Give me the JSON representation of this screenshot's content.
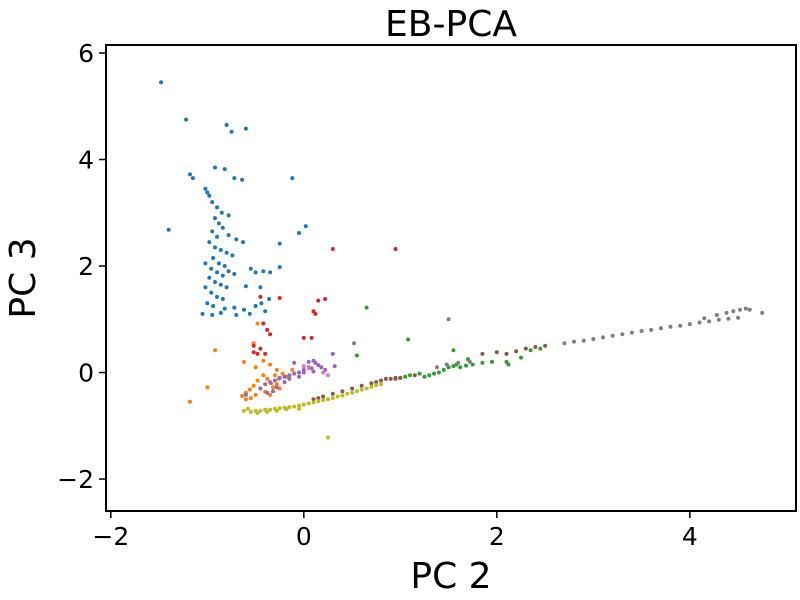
{
  "chart_data": {
    "type": "scatter",
    "title": "EB-PCA",
    "xlabel": "PC 2",
    "ylabel": "PC 3",
    "xlim": [
      -2.05,
      5.1
    ],
    "ylim": [
      -2.6,
      6.15
    ],
    "xticks": [
      -2,
      0,
      2,
      4
    ],
    "xtick_labels": [
      "−2",
      "0",
      "2",
      "4"
    ],
    "yticks": [
      -2,
      0,
      2,
      4,
      6
    ],
    "ytick_labels": [
      "−2",
      "0",
      "2",
      "4",
      "6"
    ],
    "grid": false,
    "legend": "none",
    "series": [
      {
        "color": "#1f77b4",
        "points": [
          [
            -1.48,
            5.45
          ],
          [
            -1.22,
            4.75
          ],
          [
            -0.8,
            4.65
          ],
          [
            -0.6,
            4.58
          ],
          [
            -0.75,
            4.52
          ],
          [
            -1.18,
            3.72
          ],
          [
            -1.15,
            3.65
          ],
          [
            -1.02,
            3.45
          ],
          [
            -0.92,
            3.85
          ],
          [
            -0.82,
            3.82
          ],
          [
            -0.72,
            3.65
          ],
          [
            -0.64,
            3.62
          ],
          [
            -0.12,
            3.65
          ],
          [
            -1.0,
            3.38
          ],
          [
            -0.98,
            3.32
          ],
          [
            -1.4,
            2.68
          ],
          [
            -0.95,
            3.2
          ],
          [
            -0.9,
            3.1
          ],
          [
            -0.85,
            3.0
          ],
          [
            -0.78,
            2.95
          ],
          [
            -0.92,
            2.9
          ],
          [
            -0.88,
            2.8
          ],
          [
            -0.84,
            2.72
          ],
          [
            -0.95,
            2.65
          ],
          [
            -0.9,
            2.55
          ],
          [
            -0.78,
            2.58
          ],
          [
            -0.7,
            2.5
          ],
          [
            -0.63,
            2.45
          ],
          [
            0.02,
            2.75
          ],
          [
            -0.05,
            2.62
          ],
          [
            -0.98,
            2.45
          ],
          [
            -0.92,
            2.35
          ],
          [
            -0.86,
            2.3
          ],
          [
            -0.8,
            2.25
          ],
          [
            -0.74,
            2.2
          ],
          [
            -0.94,
            2.15
          ],
          [
            -0.88,
            2.05
          ],
          [
            -0.82,
            2.0
          ],
          [
            -1.02,
            2.05
          ],
          [
            -0.96,
            1.95
          ],
          [
            -0.9,
            1.88
          ],
          [
            -0.84,
            1.82
          ],
          [
            -0.78,
            1.9
          ],
          [
            -0.72,
            1.85
          ],
          [
            -0.55,
            1.95
          ],
          [
            -0.5,
            1.88
          ],
          [
            -0.42,
            1.9
          ],
          [
            -0.35,
            1.88
          ],
          [
            -0.25,
            1.98
          ],
          [
            -0.98,
            1.78
          ],
          [
            -0.92,
            1.7
          ],
          [
            -0.86,
            1.65
          ],
          [
            -0.8,
            1.6
          ],
          [
            -1.02,
            1.6
          ],
          [
            -0.96,
            1.5
          ],
          [
            -0.9,
            1.42
          ],
          [
            -0.84,
            1.38
          ],
          [
            -0.6,
            1.62
          ],
          [
            -0.45,
            1.6
          ],
          [
            -0.25,
            2.42
          ],
          [
            -1.0,
            1.3
          ],
          [
            -0.94,
            1.25
          ],
          [
            -0.82,
            1.2
          ],
          [
            -0.72,
            1.22
          ],
          [
            -0.62,
            1.18
          ],
          [
            -0.5,
            1.25
          ],
          [
            -0.44,
            1.3
          ],
          [
            -0.36,
            1.38
          ],
          [
            -1.05,
            1.1
          ],
          [
            -0.95,
            1.08
          ],
          [
            -0.86,
            1.12
          ],
          [
            -0.7,
            1.08
          ],
          [
            -0.56,
            1.1
          ],
          [
            -0.4,
            1.15
          ]
        ]
      },
      {
        "color": "#ff7f0e",
        "points": [
          [
            -0.48,
            0.92
          ],
          [
            -0.52,
            0.55
          ],
          [
            -0.92,
            0.42
          ],
          [
            -0.62,
            0.2
          ],
          [
            -0.5,
            0.1
          ],
          [
            -0.42,
            0.22
          ],
          [
            -0.35,
            0.15
          ],
          [
            -0.28,
            0.05
          ],
          [
            -1.0,
            -0.28
          ],
          [
            -0.42,
            -0.05
          ],
          [
            -0.48,
            -0.15
          ],
          [
            -0.52,
            -0.25
          ],
          [
            -0.56,
            -0.32
          ],
          [
            -0.6,
            -0.38
          ],
          [
            -0.64,
            -0.44
          ],
          [
            -0.38,
            -0.12
          ],
          [
            -0.34,
            -0.2
          ],
          [
            -0.3,
            -0.05
          ],
          [
            -0.26,
            -0.12
          ],
          [
            -0.22,
            -0.02
          ],
          [
            -0.18,
            -0.08
          ],
          [
            -0.45,
            -0.3
          ],
          [
            -0.4,
            -0.36
          ],
          [
            -0.5,
            -0.42
          ],
          [
            -0.55,
            -0.48
          ],
          [
            -0.6,
            -0.5
          ],
          [
            -0.32,
            -0.28
          ],
          [
            -0.28,
            -0.22
          ],
          [
            -0.25,
            -0.3
          ],
          [
            -0.12,
            0.05
          ],
          [
            -1.18,
            -0.55
          ],
          [
            -0.35,
            -0.42
          ]
        ]
      },
      {
        "color": "#2ca02c",
        "points": [
          [
            0.65,
            1.22
          ],
          [
            1.08,
            0.62
          ],
          [
            0.55,
            0.32
          ],
          [
            1.55,
            0.42
          ],
          [
            1.7,
            0.25
          ],
          [
            1.25,
            -0.08
          ],
          [
            1.3,
            -0.05
          ],
          [
            1.35,
            -0.02
          ],
          [
            1.4,
            0.0
          ],
          [
            1.45,
            0.05
          ],
          [
            1.5,
            0.1
          ],
          [
            1.55,
            0.12
          ],
          [
            1.58,
            0.15
          ],
          [
            1.62,
            0.1
          ],
          [
            1.68,
            0.13
          ],
          [
            1.75,
            0.15
          ],
          [
            1.85,
            0.18
          ],
          [
            1.95,
            0.2
          ],
          [
            2.1,
            0.2
          ],
          [
            2.25,
            0.28
          ],
          [
            2.35,
            0.42
          ],
          [
            2.45,
            0.45
          ],
          [
            2.12,
            0.15
          ],
          [
            0.95,
            -0.12
          ],
          [
            1.0,
            -0.1
          ],
          [
            1.05,
            -0.08
          ],
          [
            1.1,
            -0.05
          ],
          [
            1.2,
            -0.02
          ]
        ]
      },
      {
        "color": "#d62728",
        "points": [
          [
            0.3,
            2.32
          ],
          [
            0.95,
            2.32
          ],
          [
            -0.45,
            1.42
          ],
          [
            -0.25,
            1.4
          ],
          [
            0.15,
            1.35
          ],
          [
            0.22,
            1.38
          ],
          [
            0.1,
            1.15
          ],
          [
            0.12,
            1.1
          ],
          [
            -0.42,
            0.92
          ],
          [
            -0.38,
            0.8
          ],
          [
            -0.35,
            0.72
          ],
          [
            0.0,
            0.65
          ],
          [
            0.08,
            0.65
          ],
          [
            -0.52,
            0.5
          ],
          [
            -0.45,
            0.45
          ],
          [
            -0.52,
            0.38
          ],
          [
            -0.48,
            0.35
          ],
          [
            -0.4,
            0.35
          ]
        ]
      },
      {
        "color": "#9467bd",
        "points": [
          [
            0.52,
            0.55
          ],
          [
            0.3,
            0.35
          ],
          [
            0.32,
            0.12
          ],
          [
            -0.1,
            0.18
          ],
          [
            0.05,
            0.2
          ],
          [
            0.1,
            0.22
          ],
          [
            0.12,
            0.18
          ],
          [
            0.15,
            0.14
          ],
          [
            0.18,
            0.1
          ],
          [
            0.22,
            0.05
          ],
          [
            0.0,
            0.05
          ],
          [
            0.05,
            0.1
          ],
          [
            0.08,
            0.08
          ],
          [
            -0.05,
            0.0
          ],
          [
            0.0,
            0.0
          ],
          [
            -0.1,
            -0.02
          ],
          [
            -0.15,
            -0.05
          ],
          [
            -0.2,
            -0.08
          ],
          [
            -0.25,
            -0.1
          ],
          [
            -0.3,
            -0.15
          ],
          [
            -0.35,
            -0.18
          ],
          [
            -0.4,
            -0.22
          ],
          [
            -0.45,
            -0.3
          ],
          [
            -0.15,
            -0.12
          ],
          [
            -0.2,
            -0.18
          ],
          [
            -0.28,
            -0.28
          ],
          [
            -0.32,
            -0.35
          ],
          [
            -0.38,
            -0.38
          ],
          [
            -0.05,
            -0.08
          ],
          [
            0.1,
            0.02
          ],
          [
            -0.6,
            -0.42
          ]
        ]
      },
      {
        "color": "#8c564b",
        "points": [
          [
            0.1,
            -0.5
          ],
          [
            0.15,
            -0.48
          ],
          [
            0.2,
            -0.45
          ],
          [
            0.3,
            -0.4
          ],
          [
            0.4,
            -0.35
          ],
          [
            0.5,
            -0.3
          ],
          [
            0.6,
            -0.25
          ],
          [
            0.7,
            -0.2
          ],
          [
            0.75,
            -0.18
          ],
          [
            0.8,
            -0.15
          ],
          [
            0.85,
            -0.12
          ],
          [
            0.9,
            -0.12
          ],
          [
            0.95,
            -0.1
          ],
          [
            1.0,
            -0.1
          ],
          [
            1.15,
            -0.05
          ],
          [
            1.85,
            0.35
          ],
          [
            2.0,
            0.38
          ],
          [
            2.1,
            0.35
          ],
          [
            2.2,
            0.4
          ],
          [
            2.3,
            0.45
          ],
          [
            2.4,
            0.48
          ],
          [
            2.5,
            0.5
          ]
        ]
      },
      {
        "color": "#e377c2",
        "points": [
          [
            0.0,
            0.12
          ],
          [
            0.05,
            0.08
          ],
          [
            0.2,
            0.0
          ],
          [
            0.25,
            -0.05
          ]
        ]
      },
      {
        "color": "#7f7f7f",
        "points": [
          [
            1.5,
            1.0
          ],
          [
            2.7,
            0.55
          ],
          [
            2.8,
            0.58
          ],
          [
            2.9,
            0.6
          ],
          [
            3.0,
            0.63
          ],
          [
            3.1,
            0.66
          ],
          [
            3.2,
            0.69
          ],
          [
            3.3,
            0.72
          ],
          [
            3.4,
            0.75
          ],
          [
            3.5,
            0.78
          ],
          [
            3.6,
            0.8
          ],
          [
            3.7,
            0.83
          ],
          [
            3.8,
            0.86
          ],
          [
            3.9,
            0.88
          ],
          [
            4.0,
            0.91
          ],
          [
            4.1,
            0.94
          ],
          [
            4.2,
            0.96
          ],
          [
            4.3,
            0.99
          ],
          [
            4.4,
            1.01
          ],
          [
            4.5,
            1.03
          ],
          [
            4.15,
            1.02
          ],
          [
            4.28,
            1.08
          ],
          [
            4.38,
            1.12
          ],
          [
            4.45,
            1.15
          ],
          [
            4.52,
            1.18
          ],
          [
            4.58,
            1.2
          ],
          [
            4.62,
            1.18
          ],
          [
            4.75,
            1.12
          ],
          [
            1.38,
            0.1
          ],
          [
            1.48,
            0.15
          ],
          [
            1.6,
            0.18
          ],
          [
            1.72,
            0.2
          ]
        ]
      },
      {
        "color": "#bcbd22",
        "points": [
          [
            -0.62,
            -0.72
          ],
          [
            -0.55,
            -0.74
          ],
          [
            -0.5,
            -0.72
          ],
          [
            -0.45,
            -0.72
          ],
          [
            -0.4,
            -0.7
          ],
          [
            -0.35,
            -0.7
          ],
          [
            -0.3,
            -0.68
          ],
          [
            -0.25,
            -0.67
          ],
          [
            -0.2,
            -0.66
          ],
          [
            -0.15,
            -0.65
          ],
          [
            -0.1,
            -0.64
          ],
          [
            -0.05,
            -0.62
          ],
          [
            0.0,
            -0.6
          ],
          [
            0.05,
            -0.58
          ],
          [
            0.1,
            -0.56
          ],
          [
            0.15,
            -0.54
          ],
          [
            0.2,
            -0.52
          ],
          [
            0.25,
            -0.5
          ],
          [
            0.3,
            -0.48
          ],
          [
            0.35,
            -0.45
          ],
          [
            0.4,
            -0.43
          ],
          [
            0.45,
            -0.4
          ],
          [
            0.5,
            -0.38
          ],
          [
            0.55,
            -0.35
          ],
          [
            0.6,
            -0.32
          ],
          [
            0.65,
            -0.3
          ],
          [
            0.7,
            -0.27
          ],
          [
            0.75,
            -0.24
          ],
          [
            0.8,
            -0.22
          ],
          [
            -0.58,
            -0.68
          ],
          [
            -0.48,
            -0.76
          ],
          [
            -0.38,
            -0.74
          ],
          [
            -0.28,
            -0.72
          ],
          [
            -0.18,
            -0.69
          ],
          [
            0.25,
            -1.22
          ],
          [
            -0.05,
            -0.68
          ]
        ]
      }
    ]
  }
}
